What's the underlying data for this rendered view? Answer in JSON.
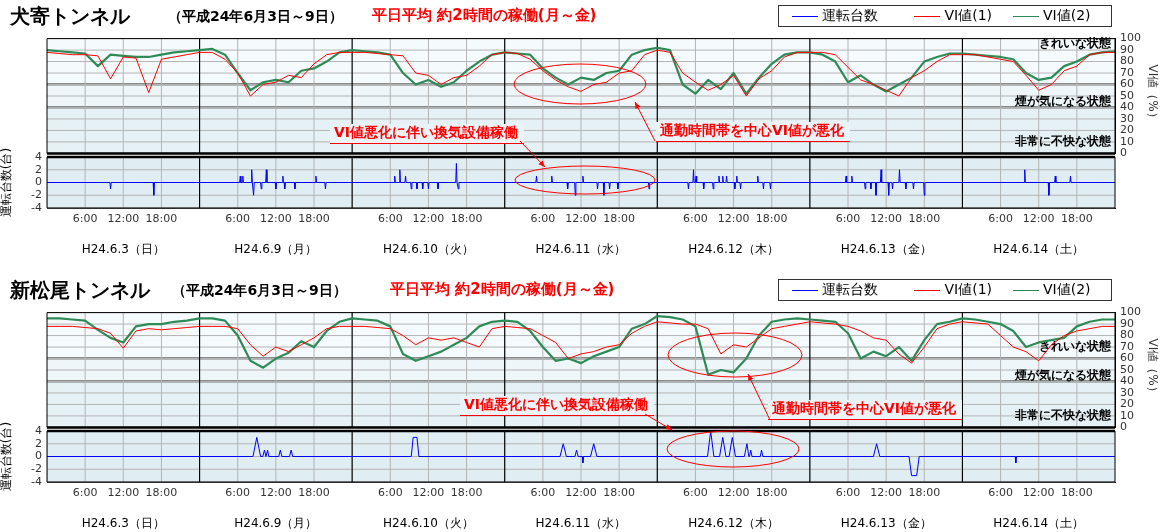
{
  "chart_data": [
    {
      "type": "line",
      "title": "犬寄トンネル",
      "subtitle": "（平成24年6月3日～9日）",
      "annotations": [
        "平日平均 約2時間の稼働(月～金)",
        "通勤時間帯を中心VI値が悪化"
      ],
      "y2label": "VI値（%）",
      "x": [
        "--06-03T00:00",
        "--06-03T02:00",
        "--06-03T04:00",
        "--06-03T06:00",
        "--06-03T08:00",
        "--06-03T10:00",
        "--06-03T12:00",
        "--06-03T14:00",
        "--06-03T16:00",
        "--06-03T18:00",
        "--06-03T20:00",
        "--06-03T22:00",
        "--06-04T00:00",
        "--06-04T02:00",
        "--06-04T04:00",
        "--06-04T06:00",
        "--06-04T08:00",
        "--06-04T10:00",
        "--06-04T12:00",
        "--06-04T14:00",
        "--06-04T16:00",
        "--06-04T18:00",
        "--06-04T20:00",
        "--06-04T22:00",
        "--06-05T00:00",
        "--06-05T02:00",
        "--06-05T04:00",
        "--06-05T06:00",
        "--06-05T08:00",
        "--06-05T10:00",
        "--06-05T12:00",
        "--06-05T14:00",
        "--06-05T16:00",
        "--06-05T18:00",
        "--06-05T20:00",
        "--06-05T22:00",
        "--06-06T00:00",
        "--06-06T02:00",
        "--06-06T04:00",
        "--06-06T06:00",
        "--06-06T08:00",
        "--06-06T10:00",
        "--06-06T12:00",
        "--06-06T14:00",
        "--06-06T16:00",
        "--06-06T18:00",
        "--06-06T20:00",
        "--06-06T22:00",
        "--06-07T00:00",
        "--06-07T02:00",
        "--06-07T04:00",
        "--06-07T06:00",
        "--06-07T08:00",
        "--06-07T10:00",
        "--06-07T12:00",
        "--06-07T14:00",
        "--06-07T16:00",
        "--06-07T18:00",
        "--06-07T20:00",
        "--06-07T22:00",
        "--06-08T00:00",
        "--06-08T02:00",
        "--06-08T04:00",
        "--06-08T06:00",
        "--06-08T08:00",
        "--06-08T10:00",
        "--06-08T12:00",
        "--06-08T14:00",
        "--06-08T16:00",
        "--06-08T18:00",
        "--06-08T20:00",
        "--06-08T22:00",
        "--06-09T00:00",
        "--06-09T02:00",
        "--06-09T04:00",
        "--06-09T06:00",
        "--06-09T08:00",
        "--06-09T10:00",
        "--06-09T12:00",
        "--06-09T14:00",
        "--06-09T16:00",
        "--06-09T18:00",
        "--06-09T20:00",
        "--06-09T22:00",
        "--06-10T00:00"
      ],
      "series": [
        {
          "name": "VI値(1)",
          "color": "#ff0000",
          "axis": "y2",
          "values": [
            88,
            87,
            86,
            86,
            85,
            65,
            84,
            83,
            53,
            82,
            84,
            86,
            88,
            88,
            82,
            70,
            50,
            60,
            62,
            68,
            66,
            78,
            86,
            88,
            88,
            88,
            87,
            86,
            85,
            70,
            68,
            60,
            66,
            68,
            76,
            86,
            88,
            87,
            82,
            72,
            64,
            58,
            54,
            60,
            62,
            70,
            72,
            86,
            90,
            88,
            70,
            62,
            55,
            60,
            68,
            50,
            65,
            72,
            84,
            88,
            88,
            88,
            86,
            75,
            64,
            60,
            55,
            50,
            66,
            72,
            80,
            86,
            86,
            86,
            84,
            82,
            80,
            68,
            55,
            60,
            72,
            76,
            86,
            88,
            88
          ]
        },
        {
          "name": "VI値(2)",
          "color": "#2e8b57",
          "axis": "y2",
          "values": [
            90,
            89,
            88,
            87,
            76,
            86,
            85,
            84,
            84,
            86,
            88,
            89,
            90,
            91,
            86,
            70,
            55,
            62,
            64,
            62,
            72,
            74,
            80,
            88,
            90,
            89,
            88,
            86,
            70,
            60,
            64,
            58,
            62,
            72,
            80,
            86,
            88,
            87,
            86,
            74,
            66,
            60,
            66,
            64,
            70,
            72,
            86,
            90,
            92,
            90,
            60,
            52,
            64,
            56,
            70,
            52,
            66,
            78,
            86,
            88,
            88,
            86,
            80,
            62,
            68,
            60,
            54,
            60,
            66,
            80,
            84,
            87,
            87,
            86,
            85,
            84,
            82,
            70,
            64,
            66,
            76,
            80,
            86,
            88,
            89
          ]
        }
      ],
      "xlim": [
        "--06-03T00:00",
        "--06-10T00:00"
      ],
      "xticks": [
        {
          "value": "--06-03T06:00",
          "label": null
        },
        {
          "value": "--06-03T12:00",
          "label": null
        },
        {
          "value": "--06-03T18:00",
          "label": null
        },
        {
          "value": "--06-04T06:00",
          "label": null
        },
        {
          "value": "--06-04T12:00",
          "label": null
        },
        {
          "value": "--06-04T18:00",
          "label": null
        },
        {
          "value": "--06-05T06:00",
          "label": null
        },
        {
          "value": "--06-05T12:00",
          "label": null
        },
        {
          "value": "--06-05T18:00",
          "label": null
        },
        {
          "value": "--06-06T06:00",
          "label": null
        },
        {
          "value": "--06-06T12:00",
          "label": null
        },
        {
          "value": "--06-06T18:00",
          "label": null
        },
        {
          "value": "--06-07T06:00",
          "label": null
        },
        {
          "value": "--06-07T12:00",
          "label": null
        },
        {
          "value": "--06-07T18:00",
          "label": null
        },
        {
          "value": "--06-08T06:00",
          "label": null
        },
        {
          "value": "--06-08T12:00",
          "label": null
        },
        {
          "value": "--06-08T18:00",
          "label": null
        },
        {
          "value": "--06-09T06:00",
          "label": null
        },
        {
          "value": "--06-09T12:00",
          "label": null
        },
        {
          "value": "--06-09T18:00",
          "label": null
        }
      ],
      "y2lim": [
        0,
        100
      ],
      "y2ticks": [
        0,
        10,
        20,
        30,
        40,
        50,
        60,
        70,
        80,
        90,
        100
      ],
      "ref_lines": [
        {
          "axis": "x",
          "value": "--06-04T00:00",
          "color": "#000000"
        },
        {
          "axis": "x",
          "value": "--06-05T00:00",
          "color": "#000000"
        },
        {
          "axis": "x",
          "value": "--06-06T00:00",
          "color": "#000000"
        },
        {
          "axis": "x",
          "value": "--06-07T00:00",
          "color": "#000000"
        },
        {
          "axis": "x",
          "value": "--06-08T00:00",
          "color": "#000000"
        },
        {
          "axis": "x",
          "value": "--06-09T00:00",
          "color": "#000000"
        }
      ],
      "bands": [
        {
          "axis": "y2",
          "from": 60,
          "to": 100,
          "label": "きれいな状態",
          "color": "#f5fafc"
        },
        {
          "axis": "y2",
          "from": 40,
          "to": 60,
          "label": "煙が気になる状態",
          "color": "#eef6f9"
        },
        {
          "axis": "y2",
          "from": 0,
          "to": 40,
          "label": "非常に不快な状態",
          "color": "#e6f1f5"
        }
      ],
      "grid": true,
      "legend": "top right",
      "tick_labels": "y"
    },
    {
      "type": "line",
      "annotations": [
        "VI値悪化に伴い換気設備稼働",
        "H24.6.3（日）",
        "H24.6.9（月）",
        "H24.6.10（火）",
        "H24.6.11（水）",
        "H24.6.12（木）",
        "H24.6.13（金）",
        "H24.6.14（土）"
      ],
      "ylabel": "運転台数(台)",
      "series": [
        {
          "name": "運転台数",
          "color": "#0000ff",
          "x": [
            "--06-03T00:00",
            "--06-03T09:54",
            "--06-03T10:00",
            "--06-03T10:06",
            "--06-03T16:42",
            "--06-03T16:48",
            "--06-03T16:54",
            "--06-04T06:18",
            "--06-04T06:24",
            "--06-04T06:30",
            "--06-04T06:42",
            "--06-04T06:48",
            "--06-04T06:54",
            "--06-04T08:06",
            "--06-04T08:12",
            "--06-04T08:18",
            "--06-04T08:24",
            "--06-04T08:30",
            "--06-04T08:36",
            "--06-04T09:36",
            "--06-04T09:42",
            "--06-04T09:48",
            "--06-04T10:24",
            "--06-04T10:30",
            "--06-04T10:36",
            "--06-04T11:54",
            "--06-04T12:00",
            "--06-04T12:06",
            "--06-04T13:00",
            "--06-04T13:06",
            "--06-04T13:12",
            "--06-04T13:18",
            "--06-04T13:24",
            "--06-04T13:30",
            "--06-04T14:54",
            "--06-04T15:00",
            "--06-04T15:06",
            "--06-04T18:12",
            "--06-04T18:18",
            "--06-04T18:24",
            "--06-04T19:42",
            "--06-04T19:48",
            "--06-04T19:54",
            "--06-05T06:36",
            "--06-05T06:42",
            "--06-05T06:48",
            "--06-05T07:24",
            "--06-05T07:30",
            "--06-05T07:36",
            "--06-05T08:18",
            "--06-05T08:24",
            "--06-05T08:30",
            "--06-05T09:12",
            "--06-05T09:18",
            "--06-05T09:24",
            "--06-05T10:06",
            "--06-05T10:12",
            "--06-05T10:18",
            "--06-05T11:00",
            "--06-05T11:06",
            "--06-05T11:12",
            "--06-05T11:54",
            "--06-05T12:00",
            "--06-05T12:06",
            "--06-05T13:24",
            "--06-05T13:30",
            "--06-05T13:36",
            "--06-05T16:18",
            "--06-05T16:24",
            "--06-05T16:30",
            "--06-05T16:36",
            "--06-05T16:42",
            "--06-05T16:48",
            "--06-06T04:54",
            "--06-06T05:00",
            "--06-06T05:06",
            "--06-06T07:18",
            "--06-06T07:24",
            "--06-06T07:30",
            "--06-06T09:48",
            "--06-06T09:54",
            "--06-06T10:00",
            "--06-06T11:00",
            "--06-06T11:06",
            "--06-06T11:12",
            "--06-06T12:12",
            "--06-06T12:18",
            "--06-06T12:24",
            "--06-06T14:30",
            "--06-06T14:36",
            "--06-06T14:42",
            "--06-06T15:30",
            "--06-06T15:36",
            "--06-06T15:42",
            "--06-06T16:24",
            "--06-06T16:30",
            "--06-06T16:36",
            "--06-06T17:42",
            "--06-06T17:48",
            "--06-06T17:54",
            "--06-06T22:36",
            "--06-06T22:42",
            "--06-06T22:48",
            "--06-07T04:48",
            "--06-07T04:54",
            "--06-07T05:00",
            "--06-07T05:36",
            "--06-07T05:42",
            "--06-07T05:48",
            "--06-07T06:00",
            "--06-07T06:06",
            "--06-07T06:12",
            "--06-07T07:12",
            "--06-07T07:18",
            "--06-07T07:24",
            "--06-07T08:42",
            "--06-07T08:48",
            "--06-07T08:54",
            "--06-07T09:36",
            "--06-07T09:42",
            "--06-07T09:48",
            "--06-07T10:12",
            "--06-07T10:18",
            "--06-07T10:24",
            "--06-07T10:48",
            "--06-07T10:54",
            "--06-07T11:00",
            "--06-07T12:06",
            "--06-07T12:12",
            "--06-07T12:18",
            "--06-07T12:24",
            "--06-07T12:30",
            "--06-07T12:36",
            "--06-07T13:00",
            "--06-07T13:06",
            "--06-07T13:12",
            "--06-07T15:42",
            "--06-07T15:48",
            "--06-07T15:54",
            "--06-07T16:36",
            "--06-07T16:42",
            "--06-07T16:48",
            "--06-07T17:42",
            "--06-07T17:48",
            "--06-07T17:54",
            "--06-08T05:36",
            "--06-08T05:42",
            "--06-08T05:48",
            "--06-08T06:30",
            "--06-08T06:36",
            "--06-08T06:42",
            "--06-08T08:36",
            "--06-08T08:42",
            "--06-08T08:48",
            "--06-08T09:30",
            "--06-08T09:36",
            "--06-08T09:42",
            "--06-08T10:18",
            "--06-08T10:24",
            "--06-08T10:30",
            "--06-08T11:06",
            "--06-08T11:12",
            "--06-08T11:18",
            "--06-08T12:18",
            "--06-08T12:24",
            "--06-08T12:30",
            "--06-08T12:54",
            "--06-08T13:00",
            "--06-08T13:06",
            "--06-08T14:00",
            "--06-08T14:06",
            "--06-08T14:12",
            "--06-08T15:00",
            "--06-08T15:06",
            "--06-08T15:12",
            "--06-08T16:12",
            "--06-08T16:18",
            "--06-08T16:24",
            "--06-08T17:54",
            "--06-08T18:00",
            "--06-08T18:06",
            "--06-09T09:42",
            "--06-09T09:48",
            "--06-09T09:54",
            "--06-09T13:30",
            "--06-09T13:36",
            "--06-09T13:42",
            "--06-09T14:30",
            "--06-09T14:36",
            "--06-09T14:42",
            "--06-09T16:54",
            "--06-09T17:00",
            "--06-09T17:06",
            "--06-10T00:00"
          ],
          "values": [
            0,
            0,
            -1,
            0,
            0,
            -2,
            0,
            0,
            1,
            0,
            0,
            1,
            0,
            0,
            2,
            0,
            0,
            -2,
            0,
            0,
            -1,
            0,
            0,
            2,
            0,
            0,
            -1,
            0,
            0,
            1,
            0,
            0,
            -1,
            0,
            0,
            -1,
            0,
            0,
            1,
            0,
            0,
            -1,
            0,
            0,
            1,
            0,
            0,
            2,
            0,
            0,
            1,
            0,
            0,
            -1,
            0,
            0,
            -1,
            0,
            0,
            -1,
            0,
            0,
            -1,
            0,
            0,
            -1,
            0,
            0,
            3,
            0,
            0,
            -1,
            0,
            0,
            1,
            0,
            0,
            1,
            0,
            0,
            -1,
            0,
            0,
            -2,
            0,
            0,
            1,
            0,
            0,
            -1,
            0,
            0,
            -2,
            0,
            0,
            -1,
            0,
            0,
            -1,
            0,
            0,
            -1,
            0,
            0,
            -1,
            0,
            0,
            2,
            0,
            0,
            1,
            0,
            0,
            -1,
            0,
            0,
            -1,
            0,
            0,
            1,
            0,
            0,
            1,
            0,
            0,
            1,
            0,
            0,
            -1,
            0,
            0,
            1,
            0,
            0,
            -1,
            0,
            0,
            1,
            0,
            0,
            -1,
            0,
            0,
            -1,
            0,
            0,
            1,
            0,
            0,
            1,
            0,
            0,
            -1,
            0,
            0,
            -1,
            0,
            0,
            -2,
            0,
            0,
            2,
            0,
            0,
            -2,
            0,
            0,
            -1,
            0,
            0,
            2,
            0,
            0,
            -1,
            0,
            0,
            -1,
            0,
            0,
            -2,
            0,
            0,
            2,
            0,
            0,
            -2,
            0,
            0,
            1,
            0,
            0,
            1,
            0,
            0
          ]
        }
      ],
      "xlim": [
        "--06-03T00:00",
        "--06-10T00:00"
      ],
      "xticks": [
        {
          "value": "--06-03T06:00",
          "label": "6:00"
        },
        {
          "value": "--06-03T12:00",
          "label": "12:00"
        },
        {
          "value": "--06-03T18:00",
          "label": "18:00"
        },
        {
          "value": "--06-04T06:00",
          "label": "6:00"
        },
        {
          "value": "--06-04T12:00",
          "label": "12:00"
        },
        {
          "value": "--06-04T18:00",
          "label": "18:00"
        },
        {
          "value": "--06-05T06:00",
          "label": "6:00"
        },
        {
          "value": "--06-05T12:00",
          "label": "12:00"
        },
        {
          "value": "--06-05T18:00",
          "label": "18:00"
        },
        {
          "value": "--06-06T06:00",
          "label": "6:00"
        },
        {
          "value": "--06-06T12:00",
          "label": "12:00"
        },
        {
          "value": "--06-06T18:00",
          "label": "18:00"
        },
        {
          "value": "--06-07T06:00",
          "label": "6:00"
        },
        {
          "value": "--06-07T12:00",
          "label": "12:00"
        },
        {
          "value": "--06-07T18:00",
          "label": "18:00"
        },
        {
          "value": "--06-08T06:00",
          "label": "6:00"
        },
        {
          "value": "--06-08T12:00",
          "label": "12:00"
        },
        {
          "value": "--06-08T18:00",
          "label": "18:00"
        },
        {
          "value": "--06-09T06:00",
          "label": "6:00"
        },
        {
          "value": "--06-09T12:00",
          "label": "12:00"
        },
        {
          "value": "--06-09T18:00",
          "label": "18:00"
        }
      ],
      "ylim": [
        -4,
        4
      ],
      "yticks": [
        -4,
        -2,
        0,
        2,
        4
      ],
      "ref_lines": [
        {
          "axis": "x",
          "value": "--06-04T00:00",
          "color": "#000000"
        },
        {
          "axis": "x",
          "value": "--06-05T00:00",
          "color": "#000000"
        },
        {
          "axis": "x",
          "value": "--06-06T00:00",
          "color": "#000000"
        },
        {
          "axis": "x",
          "value": "--06-07T00:00",
          "color": "#000000"
        },
        {
          "axis": "x",
          "value": "--06-08T00:00",
          "color": "#000000"
        },
        {
          "axis": "x",
          "value": "--06-09T00:00",
          "color": "#000000"
        }
      ],
      "grid": true,
      "legend": "top right"
    },
    {
      "type": "line",
      "title": "新松尾トンネル",
      "subtitle": "（平成24年6月3日～9日）",
      "annotations": [
        "平日平均 約2時間の稼働(月～金)",
        "通勤時間帯を中心VI値が悪化"
      ],
      "y2label": "VI値（%）",
      "x": [
        "--06-03T00:00",
        "--06-03T02:00",
        "--06-03T04:00",
        "--06-03T06:00",
        "--06-03T08:00",
        "--06-03T10:00",
        "--06-03T12:00",
        "--06-03T14:00",
        "--06-03T16:00",
        "--06-03T18:00",
        "--06-03T20:00",
        "--06-03T22:00",
        "--06-04T00:00",
        "--06-04T02:00",
        "--06-04T04:00",
        "--06-04T06:00",
        "--06-04T08:00",
        "--06-04T10:00",
        "--06-04T12:00",
        "--06-04T14:00",
        "--06-04T16:00",
        "--06-04T18:00",
        "--06-04T20:00",
        "--06-04T22:00",
        "--06-05T00:00",
        "--06-05T02:00",
        "--06-05T04:00",
        "--06-05T06:00",
        "--06-05T08:00",
        "--06-05T10:00",
        "--06-05T12:00",
        "--06-05T14:00",
        "--06-05T16:00",
        "--06-05T18:00",
        "--06-05T20:00",
        "--06-05T22:00",
        "--06-06T00:00",
        "--06-06T02:00",
        "--06-06T04:00",
        "--06-06T06:00",
        "--06-06T08:00",
        "--06-06T10:00",
        "--06-06T12:00",
        "--06-06T14:00",
        "--06-06T16:00",
        "--06-06T18:00",
        "--06-06T20:00",
        "--06-06T22:00",
        "--06-07T00:00",
        "--06-07T02:00",
        "--06-07T04:00",
        "--06-07T06:00",
        "--06-07T08:00",
        "--06-07T10:00",
        "--06-07T12:00",
        "--06-07T14:00",
        "--06-07T16:00",
        "--06-07T18:00",
        "--06-07T20:00",
        "--06-07T22:00",
        "--06-08T00:00",
        "--06-08T02:00",
        "--06-08T04:00",
        "--06-08T06:00",
        "--06-08T08:00",
        "--06-08T10:00",
        "--06-08T12:00",
        "--06-08T14:00",
        "--06-08T16:00",
        "--06-08T18:00",
        "--06-08T20:00",
        "--06-08T22:00",
        "--06-09T00:00",
        "--06-09T02:00",
        "--06-09T04:00",
        "--06-09T06:00",
        "--06-09T08:00",
        "--06-09T10:00",
        "--06-09T12:00",
        "--06-09T14:00",
        "--06-09T16:00",
        "--06-09T18:00",
        "--06-09T20:00",
        "--06-09T22:00",
        "--06-10T00:00"
      ],
      "series": [
        {
          "name": "VI値(1)",
          "color": "#ff0000",
          "axis": "y2",
          "values": [
            88,
            88,
            88,
            87,
            86,
            82,
            69,
            84,
            86,
            85,
            86,
            87,
            88,
            88,
            88,
            86,
            72,
            62,
            70,
            66,
            72,
            78,
            86,
            88,
            88,
            88,
            87,
            86,
            80,
            72,
            78,
            76,
            78,
            74,
            70,
            86,
            88,
            87,
            86,
            80,
            74,
            60,
            64,
            66,
            70,
            72,
            82,
            88,
            92,
            91,
            90,
            90,
            86,
            64,
            72,
            70,
            78,
            86,
            88,
            90,
            92,
            91,
            90,
            88,
            84,
            78,
            76,
            64,
            56,
            70,
            86,
            90,
            92,
            91,
            90,
            80,
            70,
            66,
            58,
            72,
            80,
            84,
            86,
            88,
            88
          ]
        },
        {
          "name": "VI値(2)",
          "color": "#2e8b57",
          "axis": "y2",
          "values": [
            95,
            95,
            94,
            93,
            85,
            78,
            74,
            88,
            90,
            90,
            92,
            93,
            95,
            95,
            93,
            80,
            58,
            52,
            60,
            65,
            75,
            70,
            84,
            92,
            95,
            94,
            93,
            88,
            64,
            58,
            62,
            66,
            72,
            78,
            88,
            92,
            93,
            92,
            84,
            70,
            58,
            60,
            56,
            62,
            66,
            70,
            86,
            90,
            97,
            96,
            94,
            88,
            46,
            50,
            48,
            60,
            80,
            92,
            94,
            95,
            94,
            93,
            92,
            82,
            60,
            66,
            62,
            70,
            58,
            76,
            90,
            92,
            95,
            94,
            92,
            90,
            84,
            70,
            74,
            76,
            78,
            88,
            92,
            94,
            94
          ]
        }
      ],
      "xlim": [
        "--06-03T00:00",
        "--06-10T00:00"
      ],
      "xticks": [
        {
          "value": "--06-03T06:00",
          "label": null
        },
        {
          "value": "--06-03T12:00",
          "label": null
        },
        {
          "value": "--06-03T18:00",
          "label": null
        },
        {
          "value": "--06-04T06:00",
          "label": null
        },
        {
          "value": "--06-04T12:00",
          "label": null
        },
        {
          "value": "--06-04T18:00",
          "label": null
        },
        {
          "value": "--06-05T06:00",
          "label": null
        },
        {
          "value": "--06-05T12:00",
          "label": null
        },
        {
          "value": "--06-05T18:00",
          "label": null
        },
        {
          "value": "--06-06T06:00",
          "label": null
        },
        {
          "value": "--06-06T12:00",
          "label": null
        },
        {
          "value": "--06-06T18:00",
          "label": null
        },
        {
          "value": "--06-07T06:00",
          "label": null
        },
        {
          "value": "--06-07T12:00",
          "label": null
        },
        {
          "value": "--06-07T18:00",
          "label": null
        },
        {
          "value": "--06-08T06:00",
          "label": null
        },
        {
          "value": "--06-08T12:00",
          "label": null
        },
        {
          "value": "--06-08T18:00",
          "label": null
        },
        {
          "value": "--06-09T06:00",
          "label": null
        },
        {
          "value": "--06-09T12:00",
          "label": null
        },
        {
          "value": "--06-09T18:00",
          "label": null
        }
      ],
      "y2lim": [
        0,
        100
      ],
      "y2ticks": [
        0,
        10,
        20,
        30,
        40,
        50,
        60,
        70,
        80,
        90,
        100
      ],
      "ref_lines": [
        {
          "axis": "x",
          "value": "--06-04T00:00",
          "color": "#000000"
        },
        {
          "axis": "x",
          "value": "--06-05T00:00",
          "color": "#000000"
        },
        {
          "axis": "x",
          "value": "--06-06T00:00",
          "color": "#000000"
        },
        {
          "axis": "x",
          "value": "--06-07T00:00",
          "color": "#000000"
        },
        {
          "axis": "x",
          "value": "--06-08T00:00",
          "color": "#000000"
        },
        {
          "axis": "x",
          "value": "--06-09T00:00",
          "color": "#000000"
        }
      ],
      "bands": [
        {
          "axis": "y2",
          "from": 60,
          "to": 100,
          "label": "きれいな状態",
          "color": "#f5fafc"
        },
        {
          "axis": "y2",
          "from": 40,
          "to": 60,
          "label": "煙が気になる状態",
          "color": "#eef6f9"
        },
        {
          "axis": "y2",
          "from": 0,
          "to": 40,
          "label": "非常に不快な状態",
          "color": "#e6f1f5"
        }
      ],
      "grid": true,
      "legend": "top right",
      "tick_labels": "y"
    },
    {
      "type": "line",
      "annotations": [
        "VI値悪化に伴い換気設備稼働",
        "H24.6.3（日）",
        "H24.6.9（月）",
        "H24.6.10（火）",
        "H24.6.11（水）",
        "H24.6.12（木）",
        "H24.6.13（金）",
        "H24.6.14（土）"
      ],
      "ylabel": "運転台数(台)",
      "series": [
        {
          "name": "運転台数",
          "color": "#0000ff",
          "x": [
            "--06-03T00:00",
            "--06-04T08:24",
            "--06-04T09:00",
            "--06-04T09:36",
            "--06-04T09:57",
            "--06-04T10:12",
            "--06-04T10:27",
            "--06-04T10:30",
            "--06-04T10:42",
            "--06-04T10:54",
            "--06-04T12:27",
            "--06-04T12:42",
            "--06-04T12:57",
            "--06-04T14:09",
            "--06-04T14:24",
            "--06-04T14:39",
            "--06-05T09:18",
            "--06-05T09:36",
            "--06-05T10:12",
            "--06-05T10:30",
            "--06-06T08:42",
            "--06-06T09:12",
            "--06-06T09:42",
            "--06-06T11:03",
            "--06-06T11:18",
            "--06-06T11:33",
            "--06-06T12:12",
            "--06-06T12:18",
            "--06-06T12:24",
            "--06-06T13:30",
            "--06-06T14:00",
            "--06-06T14:30",
            "--06-07T07:54",
            "--06-07T08:24",
            "--06-07T08:54",
            "--06-07T09:48",
            "--06-07T10:18",
            "--06-07T10:48",
            "--06-07T11:18",
            "--06-07T11:48",
            "--06-07T12:18",
            "--06-07T13:42",
            "--06-07T14:06",
            "--06-07T14:24",
            "--06-07T14:30",
            "--06-07T14:42",
            "--06-07T14:54",
            "--06-07T16:12",
            "--06-07T16:24",
            "--06-07T16:36",
            "--06-08T10:00",
            "--06-08T10:30",
            "--06-08T11:00",
            "--06-08T15:36",
            "--06-08T16:00",
            "--06-08T16:48",
            "--06-08T17:12",
            "--06-09T08:18",
            "--06-09T08:24",
            "--06-09T08:30",
            "--06-10T00:00"
          ],
          "values": [
            0,
            0,
            3,
            0,
            0,
            1,
            0,
            0,
            1,
            0,
            0,
            1,
            0,
            0,
            1,
            0,
            0,
            3,
            3,
            0,
            0,
            2,
            0,
            0,
            1,
            0,
            0,
            -1,
            0,
            0,
            2,
            0,
            0,
            4,
            0,
            0,
            3,
            0,
            0,
            3,
            0,
            0,
            2,
            0,
            0,
            1,
            0,
            0,
            1,
            0,
            0,
            2,
            0,
            0,
            -3,
            -3,
            0,
            0,
            -1,
            0,
            0
          ]
        }
      ],
      "xlim": [
        "--06-03T00:00",
        "--06-10T00:00"
      ],
      "xticks": [
        {
          "value": "--06-03T06:00",
          "label": "6:00"
        },
        {
          "value": "--06-03T12:00",
          "label": "12:00"
        },
        {
          "value": "--06-03T18:00",
          "label": "18:00"
        },
        {
          "value": "--06-04T06:00",
          "label": "6:00"
        },
        {
          "value": "--06-04T12:00",
          "label": "12:00"
        },
        {
          "value": "--06-04T18:00",
          "label": "18:00"
        },
        {
          "value": "--06-05T06:00",
          "label": "6:00"
        },
        {
          "value": "--06-05T12:00",
          "label": "12:00"
        },
        {
          "value": "--06-05T18:00",
          "label": "18:00"
        },
        {
          "value": "--06-06T06:00",
          "label": "6:00"
        },
        {
          "value": "--06-06T12:00",
          "label": "12:00"
        },
        {
          "value": "--06-06T18:00",
          "label": "18:00"
        },
        {
          "value": "--06-07T06:00",
          "label": "6:00"
        },
        {
          "value": "--06-07T12:00",
          "label": "12:00"
        },
        {
          "value": "--06-07T18:00",
          "label": "18:00"
        },
        {
          "value": "--06-08T06:00",
          "label": "6:00"
        },
        {
          "value": "--06-08T12:00",
          "label": "12:00"
        },
        {
          "value": "--06-08T18:00",
          "label": "18:00"
        },
        {
          "value": "--06-09T06:00",
          "label": "6:00"
        },
        {
          "value": "--06-09T12:00",
          "label": "12:00"
        },
        {
          "value": "--06-09T18:00",
          "label": "18:00"
        }
      ],
      "ylim": [
        -4,
        4
      ],
      "yticks": [
        -4,
        -2,
        0,
        2,
        4
      ],
      "ref_lines": [
        {
          "axis": "x",
          "value": "--06-04T00:00",
          "color": "#000000"
        },
        {
          "axis": "x",
          "value": "--06-05T00:00",
          "color": "#000000"
        },
        {
          "axis": "x",
          "value": "--06-06T00:00",
          "color": "#000000"
        },
        {
          "axis": "x",
          "value": "--06-07T00:00",
          "color": "#000000"
        },
        {
          "axis": "x",
          "value": "--06-08T00:00",
          "color": "#000000"
        },
        {
          "axis": "x",
          "value": "--06-09T00:00",
          "color": "#000000"
        }
      ],
      "grid": true,
      "legend": "top right"
    }
  ]
}
